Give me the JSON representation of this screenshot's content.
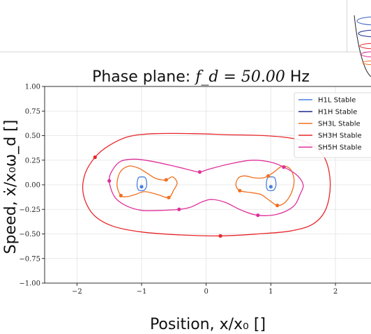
{
  "chart_data": {
    "type": "line",
    "title": "Phase plane: f_d = 50.00 Hz",
    "title_parts": {
      "prefix": "Phase plane: ",
      "math": "f_d = 50.00",
      "unit": " Hz"
    },
    "xlabel": "Position, x/x₀ []",
    "ylabel": "Speed, ẋ/x₀ω_d []",
    "xlim": [
      -2.5,
      2.55
    ],
    "ylim": [
      -1.0,
      1.0
    ],
    "xticks": [
      -2,
      -1,
      0,
      1,
      2
    ],
    "xtick_labels": [
      "−2",
      "−1",
      "0",
      "1",
      "2"
    ],
    "yticks": [
      -1.0,
      -0.75,
      -0.5,
      -0.25,
      0.0,
      0.25,
      0.5,
      0.75,
      1.0
    ],
    "ytick_labels": [
      "−1.00",
      "−0.75",
      "−0.50",
      "−0.25",
      "0.00",
      "0.25",
      "0.50",
      "0.75",
      "1.00"
    ],
    "grid": true,
    "legend_position": "top-right",
    "series": [
      {
        "name": "H1L Stable",
        "color": "#4a7fe0",
        "markers": [
          [
            -1.0,
            -0.02
          ],
          [
            1.0,
            -0.02
          ]
        ]
      },
      {
        "name": "H1H Stable",
        "color": "#1a2a8c",
        "markers": []
      },
      {
        "name": "SH3L Stable",
        "color": "#f07020",
        "markers": [
          [
            -0.62,
            0.05
          ],
          [
            -0.58,
            -0.13
          ],
          [
            -1.32,
            -0.11
          ],
          [
            0.52,
            -0.06
          ],
          [
            0.96,
            0.09
          ],
          [
            1.1,
            -0.21
          ]
        ]
      },
      {
        "name": "SH3H Stable",
        "color": "#e8262a",
        "markers": [
          [
            -1.72,
            0.28
          ],
          [
            0.22,
            -0.52
          ]
        ]
      },
      {
        "name": "SH5H Stable",
        "color": "#e0309a",
        "markers": [
          [
            -1.5,
            0.04
          ],
          [
            -0.1,
            0.13
          ],
          [
            -0.42,
            -0.25
          ],
          [
            0.8,
            -0.31
          ],
          [
            1.2,
            0.18
          ]
        ]
      }
    ]
  }
}
